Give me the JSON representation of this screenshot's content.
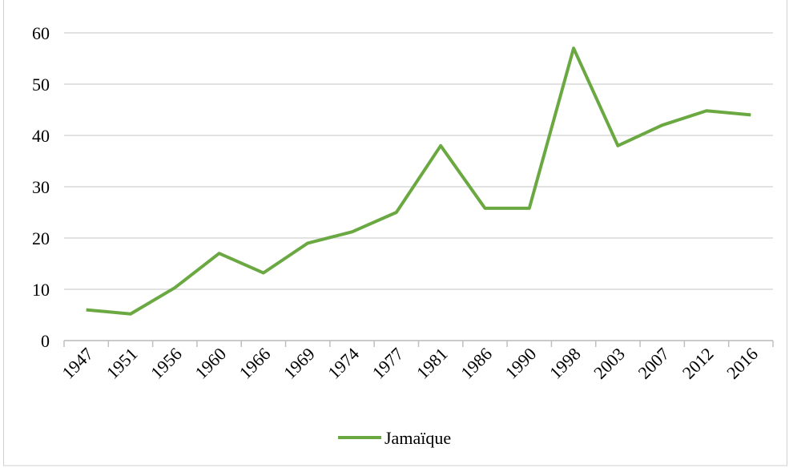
{
  "chart_data": {
    "type": "line",
    "categories": [
      "1947",
      "1951",
      "1956",
      "1960",
      "1966",
      "1969",
      "1974",
      "1977",
      "1981",
      "1986",
      "1990",
      "1998",
      "2003",
      "2007",
      "2012",
      "2016"
    ],
    "series": [
      {
        "name": "Jamaïque",
        "color": "#6aa842",
        "values": [
          6,
          5.2,
          10.3,
          17,
          13.2,
          19,
          21.2,
          25,
          38,
          25.8,
          25.8,
          57,
          38,
          42,
          44.8,
          44
        ]
      }
    ],
    "ylim": [
      0,
      60
    ],
    "yticks": [
      0,
      10,
      20,
      30,
      40,
      50,
      60
    ],
    "grid": true,
    "legend": "bottom"
  }
}
